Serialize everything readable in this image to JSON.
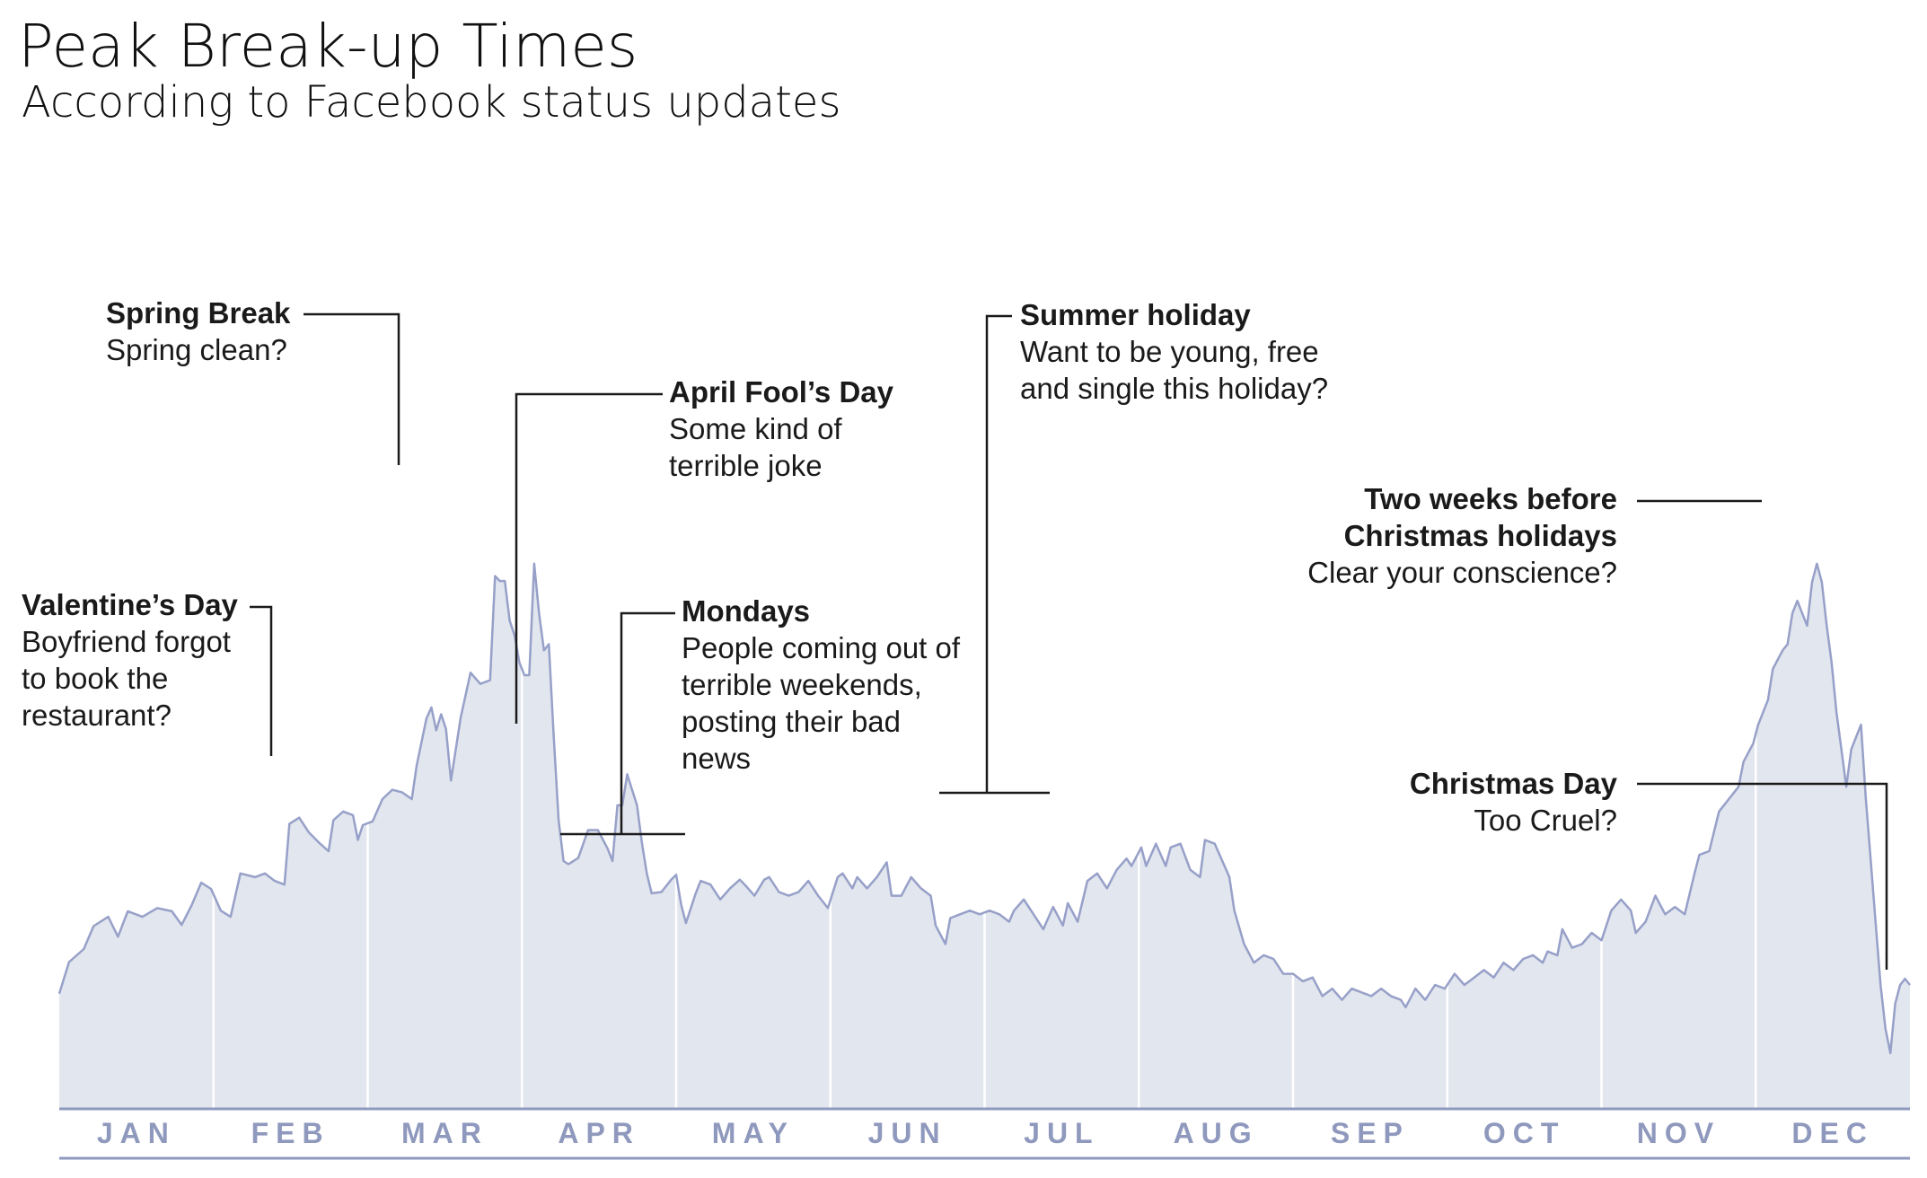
{
  "chart_data": {
    "type": "area",
    "title": "Peak Break-up Times",
    "subtitle": "According to Facebook status updates",
    "xlabel": "",
    "ylabel": "",
    "grid": false,
    "legend": "none",
    "ylim": [
      0,
      100
    ],
    "months": [
      "JAN",
      "FEB",
      "MAR",
      "APR",
      "MAY",
      "JUN",
      "JUL",
      "AUG",
      "SEP",
      "OCT",
      "NOV",
      "DEC"
    ],
    "series": [
      {
        "name": "",
        "points": [
          {
            "x": 0,
            "y": 18.6
          },
          {
            "x": 2,
            "y": 23.7
          },
          {
            "x": 5,
            "y": 25.8
          },
          {
            "x": 7,
            "y": 29.5
          },
          {
            "x": 10,
            "y": 31.0
          },
          {
            "x": 12,
            "y": 27.8
          },
          {
            "x": 14,
            "y": 31.9
          },
          {
            "x": 17,
            "y": 31.0
          },
          {
            "x": 20,
            "y": 32.4
          },
          {
            "x": 23,
            "y": 31.9
          },
          {
            "x": 25,
            "y": 29.7
          },
          {
            "x": 27,
            "y": 32.8
          },
          {
            "x": 29,
            "y": 36.5
          },
          {
            "x": 31,
            "y": 35.5
          },
          {
            "x": 33,
            "y": 32.0
          },
          {
            "x": 35,
            "y": 31.0
          },
          {
            "x": 37,
            "y": 38.0
          },
          {
            "x": 40,
            "y": 37.4
          },
          {
            "x": 42,
            "y": 38.0
          },
          {
            "x": 44,
            "y": 36.8
          },
          {
            "x": 46,
            "y": 36.2
          },
          {
            "x": 47,
            "y": 46.0
          },
          {
            "x": 49,
            "y": 47.0
          },
          {
            "x": 51,
            "y": 44.6
          },
          {
            "x": 53,
            "y": 43.0
          },
          {
            "x": 55,
            "y": 41.6
          },
          {
            "x": 56,
            "y": 46.6
          },
          {
            "x": 58,
            "y": 48.0
          },
          {
            "x": 60,
            "y": 47.4
          },
          {
            "x": 61,
            "y": 43.4
          },
          {
            "x": 62,
            "y": 45.8
          },
          {
            "x": 64,
            "y": 46.4
          },
          {
            "x": 66,
            "y": 50.0
          },
          {
            "x": 68,
            "y": 51.5
          },
          {
            "x": 70,
            "y": 51.1
          },
          {
            "x": 72,
            "y": 50.0
          },
          {
            "x": 73,
            "y": 55.4
          },
          {
            "x": 75,
            "y": 63.0
          },
          {
            "x": 76,
            "y": 64.8
          },
          {
            "x": 77,
            "y": 61.1
          },
          {
            "x": 78,
            "y": 63.7
          },
          {
            "x": 79,
            "y": 61.3
          },
          {
            "x": 80,
            "y": 53.0
          },
          {
            "x": 82,
            "y": 63.2
          },
          {
            "x": 84,
            "y": 70.4
          },
          {
            "x": 86,
            "y": 68.6
          },
          {
            "x": 88,
            "y": 69.2
          },
          {
            "x": 89,
            "y": 86.0
          },
          {
            "x": 90,
            "y": 85.2
          },
          {
            "x": 91,
            "y": 85.2
          },
          {
            "x": 92,
            "y": 78.8
          },
          {
            "x": 93,
            "y": 76.4
          },
          {
            "x": 94,
            "y": 72.0
          },
          {
            "x": 95,
            "y": 70.0
          },
          {
            "x": 96,
            "y": 70.0
          },
          {
            "x": 97,
            "y": 88.0
          },
          {
            "x": 98,
            "y": 80.0
          },
          {
            "x": 99,
            "y": 74.0
          },
          {
            "x": 100,
            "y": 75.0
          },
          {
            "x": 101,
            "y": 60.0
          },
          {
            "x": 102,
            "y": 46.6
          },
          {
            "x": 103,
            "y": 40.0
          },
          {
            "x": 104,
            "y": 39.5
          },
          {
            "x": 106,
            "y": 40.5
          },
          {
            "x": 108,
            "y": 45.0
          },
          {
            "x": 110,
            "y": 45.0
          },
          {
            "x": 112,
            "y": 42.0
          },
          {
            "x": 113,
            "y": 40.0
          },
          {
            "x": 114,
            "y": 49.0
          },
          {
            "x": 115,
            "y": 49.0
          },
          {
            "x": 116,
            "y": 54.0
          },
          {
            "x": 118,
            "y": 49.0
          },
          {
            "x": 119,
            "y": 43.0
          },
          {
            "x": 120,
            "y": 38.0
          },
          {
            "x": 121,
            "y": 34.8
          },
          {
            "x": 123,
            "y": 35.0
          },
          {
            "x": 125,
            "y": 37.0
          },
          {
            "x": 126,
            "y": 37.8
          },
          {
            "x": 127,
            "y": 33.0
          },
          {
            "x": 128,
            "y": 30.0
          },
          {
            "x": 130,
            "y": 34.8
          },
          {
            "x": 131,
            "y": 36.8
          },
          {
            "x": 133,
            "y": 36.2
          },
          {
            "x": 135,
            "y": 33.8
          },
          {
            "x": 137,
            "y": 35.6
          },
          {
            "x": 139,
            "y": 37.0
          },
          {
            "x": 140,
            "y": 36.2
          },
          {
            "x": 142,
            "y": 34.4
          },
          {
            "x": 144,
            "y": 37.0
          },
          {
            "x": 145,
            "y": 37.4
          },
          {
            "x": 147,
            "y": 35.0
          },
          {
            "x": 149,
            "y": 34.4
          },
          {
            "x": 151,
            "y": 35.0
          },
          {
            "x": 153,
            "y": 36.8
          },
          {
            "x": 155,
            "y": 34.4
          },
          {
            "x": 157,
            "y": 32.4
          },
          {
            "x": 159,
            "y": 37.4
          },
          {
            "x": 160,
            "y": 38.0
          },
          {
            "x": 162,
            "y": 35.6
          },
          {
            "x": 163,
            "y": 37.4
          },
          {
            "x": 165,
            "y": 35.6
          },
          {
            "x": 167,
            "y": 37.4
          },
          {
            "x": 169,
            "y": 39.8
          },
          {
            "x": 170,
            "y": 34.4
          },
          {
            "x": 172,
            "y": 34.4
          },
          {
            "x": 174,
            "y": 37.4
          },
          {
            "x": 176,
            "y": 35.6
          },
          {
            "x": 178,
            "y": 34.4
          },
          {
            "x": 179,
            "y": 29.6
          },
          {
            "x": 181,
            "y": 26.6
          },
          {
            "x": 182,
            "y": 30.8
          },
          {
            "x": 184,
            "y": 31.4
          },
          {
            "x": 186,
            "y": 32.0
          },
          {
            "x": 188,
            "y": 31.4
          },
          {
            "x": 190,
            "y": 32.0
          },
          {
            "x": 192,
            "y": 31.4
          },
          {
            "x": 194,
            "y": 30.2
          },
          {
            "x": 195,
            "y": 32.0
          },
          {
            "x": 197,
            "y": 33.8
          },
          {
            "x": 199,
            "y": 31.4
          },
          {
            "x": 201,
            "y": 29.0
          },
          {
            "x": 203,
            "y": 32.6
          },
          {
            "x": 205,
            "y": 29.6
          },
          {
            "x": 206,
            "y": 33.2
          },
          {
            "x": 208,
            "y": 30.2
          },
          {
            "x": 210,
            "y": 36.8
          },
          {
            "x": 212,
            "y": 38.0
          },
          {
            "x": 214,
            "y": 35.6
          },
          {
            "x": 216,
            "y": 38.6
          },
          {
            "x": 218,
            "y": 40.4
          },
          {
            "x": 219,
            "y": 39.2
          },
          {
            "x": 221,
            "y": 42.2
          },
          {
            "x": 222,
            "y": 39.2
          },
          {
            "x": 224,
            "y": 42.8
          },
          {
            "x": 226,
            "y": 39.2
          },
          {
            "x": 227,
            "y": 42.2
          },
          {
            "x": 229,
            "y": 42.8
          },
          {
            "x": 231,
            "y": 38.6
          },
          {
            "x": 233,
            "y": 37.4
          },
          {
            "x": 234,
            "y": 43.4
          },
          {
            "x": 236,
            "y": 42.8
          },
          {
            "x": 238,
            "y": 39.2
          },
          {
            "x": 239,
            "y": 37.4
          },
          {
            "x": 240,
            "y": 32.0
          },
          {
            "x": 242,
            "y": 26.6
          },
          {
            "x": 244,
            "y": 23.6
          },
          {
            "x": 246,
            "y": 24.8
          },
          {
            "x": 248,
            "y": 24.2
          },
          {
            "x": 250,
            "y": 21.8
          },
          {
            "x": 252,
            "y": 21.8
          },
          {
            "x": 254,
            "y": 20.6
          },
          {
            "x": 256,
            "y": 21.2
          },
          {
            "x": 258,
            "y": 18.2
          },
          {
            "x": 260,
            "y": 19.4
          },
          {
            "x": 262,
            "y": 17.6
          },
          {
            "x": 264,
            "y": 19.4
          },
          {
            "x": 266,
            "y": 18.8
          },
          {
            "x": 268,
            "y": 18.2
          },
          {
            "x": 270,
            "y": 19.4
          },
          {
            "x": 272,
            "y": 18.2
          },
          {
            "x": 274,
            "y": 17.6
          },
          {
            "x": 275,
            "y": 16.4
          },
          {
            "x": 277,
            "y": 19.4
          },
          {
            "x": 279,
            "y": 17.6
          },
          {
            "x": 281,
            "y": 20.0
          },
          {
            "x": 283,
            "y": 19.4
          },
          {
            "x": 285,
            "y": 21.8
          },
          {
            "x": 287,
            "y": 20.0
          },
          {
            "x": 289,
            "y": 21.2
          },
          {
            "x": 291,
            "y": 22.4
          },
          {
            "x": 293,
            "y": 21.2
          },
          {
            "x": 295,
            "y": 23.6
          },
          {
            "x": 297,
            "y": 22.4
          },
          {
            "x": 299,
            "y": 24.2
          },
          {
            "x": 301,
            "y": 24.8
          },
          {
            "x": 303,
            "y": 23.6
          },
          {
            "x": 304,
            "y": 25.4
          },
          {
            "x": 306,
            "y": 24.8
          },
          {
            "x": 307,
            "y": 29.0
          },
          {
            "x": 309,
            "y": 26.0
          },
          {
            "x": 311,
            "y": 26.6
          },
          {
            "x": 313,
            "y": 28.4
          },
          {
            "x": 315,
            "y": 27.2
          },
          {
            "x": 317,
            "y": 32.0
          },
          {
            "x": 319,
            "y": 33.8
          },
          {
            "x": 321,
            "y": 32.0
          },
          {
            "x": 322,
            "y": 28.4
          },
          {
            "x": 324,
            "y": 30.2
          },
          {
            "x": 326,
            "y": 34.4
          },
          {
            "x": 328,
            "y": 31.4
          },
          {
            "x": 330,
            "y": 32.6
          },
          {
            "x": 332,
            "y": 31.4
          },
          {
            "x": 334,
            "y": 38.0
          },
          {
            "x": 335,
            "y": 41.0
          },
          {
            "x": 337,
            "y": 41.6
          },
          {
            "x": 339,
            "y": 48.0
          },
          {
            "x": 341,
            "y": 50.0
          },
          {
            "x": 343,
            "y": 52.0
          },
          {
            "x": 344,
            "y": 56.0
          },
          {
            "x": 346,
            "y": 59.0
          },
          {
            "x": 347,
            "y": 62.0
          },
          {
            "x": 349,
            "y": 66.0
          },
          {
            "x": 350,
            "y": 71.0
          },
          {
            "x": 352,
            "y": 74.0
          },
          {
            "x": 353,
            "y": 75.0
          },
          {
            "x": 354,
            "y": 80.0
          },
          {
            "x": 355,
            "y": 82.0
          },
          {
            "x": 356,
            "y": 80.0
          },
          {
            "x": 357,
            "y": 78.0
          },
          {
            "x": 358,
            "y": 85.0
          },
          {
            "x": 359,
            "y": 88.0
          },
          {
            "x": 360,
            "y": 85.0
          },
          {
            "x": 361,
            "y": 78.0
          },
          {
            "x": 362,
            "y": 72.0
          },
          {
            "x": 363,
            "y": 64.0
          },
          {
            "x": 364,
            "y": 58.0
          },
          {
            "x": 365,
            "y": 52.0
          },
          {
            "x": 366,
            "y": 58.0
          },
          {
            "x": 367,
            "y": 60.0
          },
          {
            "x": 368,
            "y": 62.0
          },
          {
            "x": 369,
            "y": 50.0
          },
          {
            "x": 370,
            "y": 40.0
          },
          {
            "x": 371,
            "y": 30.0
          },
          {
            "x": 372,
            "y": 20.0
          },
          {
            "x": 373,
            "y": 13.0
          },
          {
            "x": 374,
            "y": 9.0
          },
          {
            "x": 375,
            "y": 17.0
          },
          {
            "x": 376,
            "y": 20.0
          },
          {
            "x": 377,
            "y": 21.0
          },
          {
            "x": 378,
            "y": 20.0
          }
        ]
      }
    ],
    "annotations": [
      {
        "heading": "Valentine’s Day",
        "body": [
          "Boyfriend forgot",
          "to book the",
          "restaurant?"
        ]
      },
      {
        "heading": "Spring Break",
        "body": [
          "Spring clean?"
        ]
      },
      {
        "heading": "April Fool’s Day",
        "body": [
          "Some kind of",
          "terrible joke"
        ]
      },
      {
        "heading": "Mondays",
        "body": [
          "People coming out of",
          "terrible weekends,",
          "posting their bad",
          "news"
        ]
      },
      {
        "heading": "Summer holiday",
        "body": [
          "Want to be young, free",
          "and single this holiday?"
        ]
      },
      {
        "heading": "Two weeks before",
        "heading2": "Christmas holidays",
        "body": [
          "Clear your conscience?"
        ]
      },
      {
        "heading": "Christmas Day",
        "body": [
          "Too Cruel?"
        ]
      }
    ]
  }
}
